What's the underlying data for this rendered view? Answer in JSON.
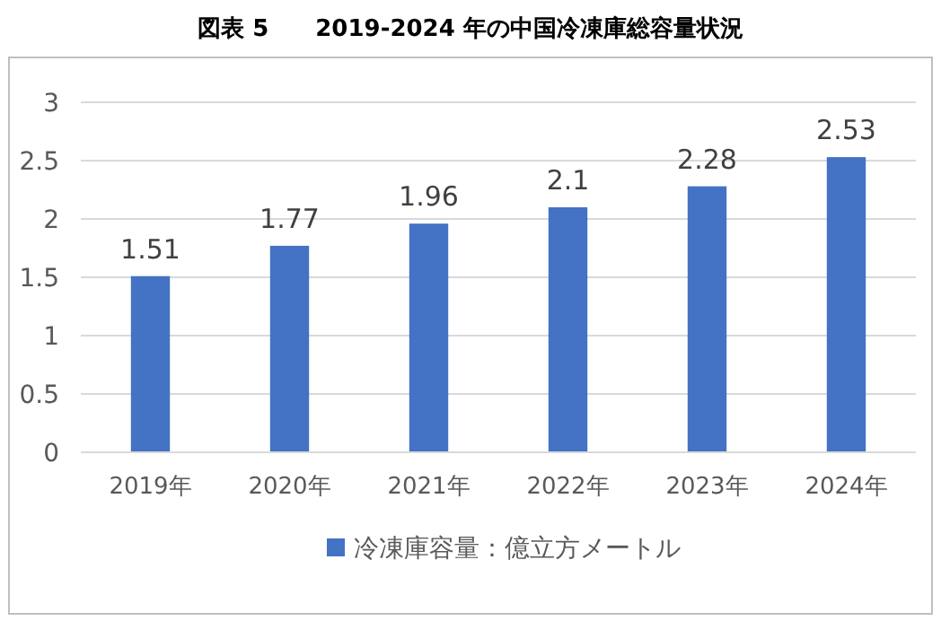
{
  "chart_data": {
    "type": "bar",
    "title": "図表 5　　2019-2024 年の中国冷凍庫総容量状況",
    "categories": [
      "2019年",
      "2020年",
      "2021年",
      "2022年",
      "2023年",
      "2024年"
    ],
    "series": [
      {
        "name": "冷凍庫容量：億立方メートル",
        "color": "#4472c4",
        "values": [
          1.51,
          1.77,
          1.96,
          2.1,
          2.28,
          2.53
        ]
      }
    ],
    "ylim": [
      0,
      3
    ],
    "yticks": [
      0,
      0.5,
      1,
      1.5,
      2,
      2.5,
      3
    ],
    "grid": "y",
    "legend": "bottom",
    "data_labels": true
  }
}
